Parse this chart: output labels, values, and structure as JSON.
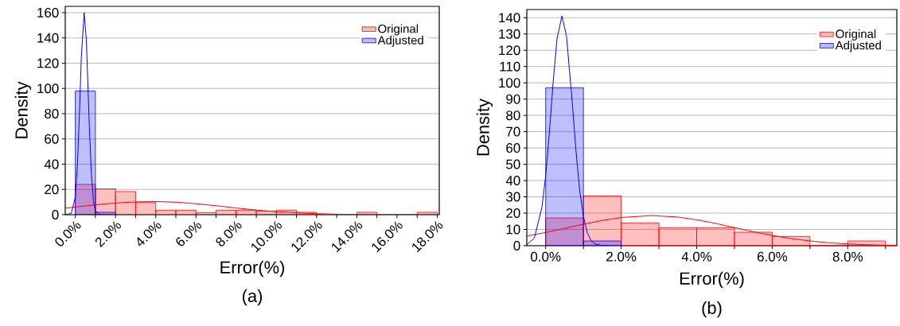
{
  "chart_data": [
    {
      "type": "histogram",
      "title": "(a)",
      "xlabel": "Error(%)",
      "ylabel": "Density",
      "xlim": [
        -0.5,
        18.1
      ],
      "ylim": [
        0,
        165
      ],
      "xticks": [
        {
          "value": 0,
          "label": "0.0%"
        },
        {
          "value": 1,
          "label": null
        },
        {
          "value": 2,
          "label": "2.0%"
        },
        {
          "value": 3,
          "label": null
        },
        {
          "value": 4,
          "label": "4.0%"
        },
        {
          "value": 5,
          "label": null
        },
        {
          "value": 6,
          "label": "6.0%"
        },
        {
          "value": 7,
          "label": null
        },
        {
          "value": 8,
          "label": "8.0%"
        },
        {
          "value": 9,
          "label": null
        },
        {
          "value": 10,
          "label": "10.0%"
        },
        {
          "value": 11,
          "label": null
        },
        {
          "value": 12,
          "label": "12.0%"
        },
        {
          "value": 13,
          "label": null
        },
        {
          "value": 14,
          "label": "14.0%"
        },
        {
          "value": 15,
          "label": null
        },
        {
          "value": 16,
          "label": "16.0%"
        },
        {
          "value": 17,
          "label": null
        },
        {
          "value": 18,
          "label": "18.0%"
        }
      ],
      "yticks": [
        0,
        20,
        40,
        60,
        80,
        100,
        120,
        140,
        160
      ],
      "grid": "y",
      "legend": "top right",
      "series": [
        {
          "name": "Original",
          "color": "#ff0000",
          "bins": [
            0,
            1,
            2,
            3,
            4,
            5,
            6,
            7,
            8,
            9,
            10,
            11,
            12,
            13,
            14,
            15,
            16,
            17,
            18
          ],
          "values": [
            24,
            20.5,
            18.3,
            9.6,
            3.6,
            3.6,
            1.7,
            3.6,
            3.6,
            2.8,
            3.6,
            1.9,
            0,
            0,
            1.9,
            0,
            0,
            1.9
          ]
        },
        {
          "name": "Adjusted",
          "color": "#0000ff",
          "bins": [
            0,
            1,
            2
          ],
          "values": [
            98,
            1.9
          ]
        },
        {
          "type": "line",
          "color": "#ff0000",
          "x": [
            -0.5,
            0.5,
            1.5,
            2.5,
            3.8,
            5,
            6,
            7,
            8,
            9,
            10,
            11,
            12,
            13,
            14,
            15,
            16,
            18
          ],
          "values": [
            5.2,
            6.9,
            8.6,
            9.8,
            10.5,
            9.9,
            8.7,
            7.1,
            5.3,
            3.7,
            2.4,
            1.4,
            0.8,
            0.4,
            0.2,
            0.1,
            0,
            0
          ]
        },
        {
          "type": "line",
          "color": "#0000ff",
          "x": [
            -0.5,
            -0.2,
            0,
            0.1,
            0.2,
            0.3,
            0.44,
            0.55,
            0.7,
            0.8,
            0.9,
            1.0,
            1.2,
            1.5
          ],
          "values": [
            0,
            1,
            14,
            38,
            78,
            125,
            160,
            138,
            69,
            32,
            11,
            3,
            0.1,
            0
          ]
        }
      ]
    },
    {
      "type": "histogram",
      "title": "(b)",
      "xlabel": "Error(%)",
      "ylabel": "Density",
      "xlim": [
        -0.5,
        9.3
      ],
      "ylim": [
        0,
        145
      ],
      "xticks": [
        {
          "value": 0,
          "label": "0.0%"
        },
        {
          "value": 1,
          "label": null
        },
        {
          "value": 2,
          "label": "2.0%"
        },
        {
          "value": 3,
          "label": null
        },
        {
          "value": 4,
          "label": "4.0%"
        },
        {
          "value": 5,
          "label": null
        },
        {
          "value": 6,
          "label": "6.0%"
        },
        {
          "value": 7,
          "label": null
        },
        {
          "value": 8,
          "label": "8.0%"
        },
        {
          "value": 9,
          "label": null
        }
      ],
      "yticks": [
        0,
        10,
        20,
        30,
        40,
        50,
        60,
        70,
        80,
        90,
        100,
        110,
        120,
        130,
        140
      ],
      "grid": "y",
      "legend": "top right",
      "series": [
        {
          "name": "Original",
          "color": "#ff0000",
          "bins": [
            0,
            1,
            2,
            3,
            4,
            5,
            6,
            7,
            8,
            9
          ],
          "values": [
            17,
            30.6,
            14,
            11.1,
            11.1,
            8.3,
            5.7,
            0,
            2.9
          ]
        },
        {
          "name": "Adjusted",
          "color": "#0000ff",
          "bins": [
            0,
            1,
            2
          ],
          "values": [
            97,
            2.9
          ]
        },
        {
          "type": "line",
          "color": "#ff0000",
          "x": [
            -0.5,
            0,
            0.5,
            1,
            1.5,
            2,
            2.8,
            3.5,
            4,
            4.5,
            5,
            5.5,
            6,
            6.5,
            7,
            7.5,
            8,
            8.5,
            9,
            9.3
          ],
          "values": [
            6,
            8.1,
            10.6,
            13.2,
            15.5,
            17.3,
            18.5,
            17.6,
            15.9,
            13.7,
            11.1,
            8.6,
            6.3,
            4.4,
            2.9,
            1.8,
            1.1,
            0.6,
            0.3,
            0.2
          ]
        },
        {
          "type": "line",
          "color": "#0000ff",
          "x": [
            -0.5,
            -0.3,
            -0.1,
            0,
            0.1,
            0.2,
            0.3,
            0.43,
            0.55,
            0.7,
            0.8,
            0.9,
            1.0,
            1.1,
            1.2,
            1.3,
            1.5,
            1.7
          ],
          "values": [
            0.6,
            4.7,
            23.5,
            43,
            70,
            101,
            127,
            141,
            129,
            89,
            59,
            34,
            18,
            8,
            3.2,
            1.1,
            0.1,
            0
          ]
        }
      ]
    }
  ]
}
